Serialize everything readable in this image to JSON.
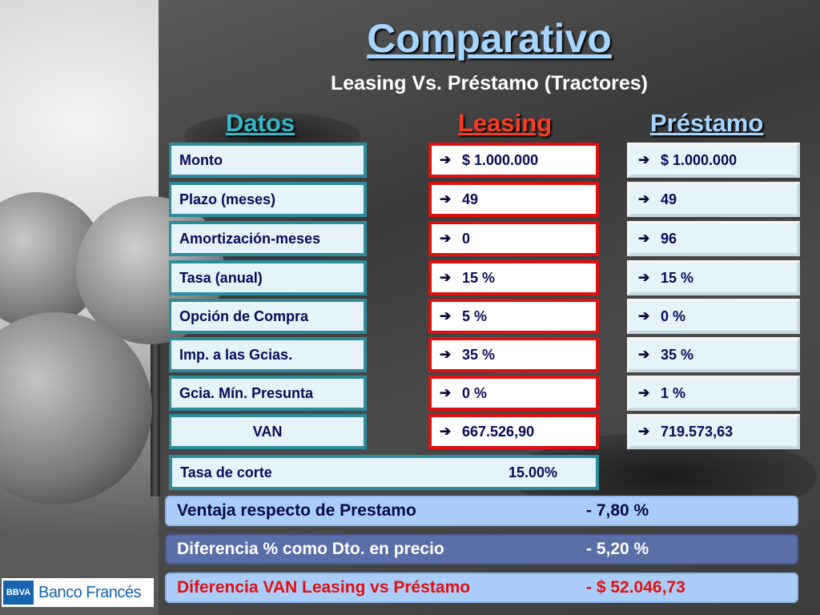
{
  "header": {
    "title": "Comparativo",
    "subtitle": "Leasing Vs. Préstamo (Tractores)"
  },
  "columns": {
    "datos": "Datos",
    "leasing": "Leasing",
    "prestamo": "Préstamo"
  },
  "arrow_icon": "➔",
  "rows": [
    {
      "label": "Monto",
      "leasing": "$ 1.000.000",
      "prestamo": "$ 1.000.000"
    },
    {
      "label": "Plazo (meses)",
      "leasing": "49",
      "prestamo": "49"
    },
    {
      "label": "Amortización-meses",
      "leasing": "0",
      "prestamo": "96"
    },
    {
      "label": "Tasa (anual)",
      "leasing": "15 %",
      "prestamo": "15 %"
    },
    {
      "label": "Opción de Compra",
      "leasing": "5 %",
      "prestamo": "0 %"
    },
    {
      "label": "Imp. a las Gcias.",
      "leasing": "35 %",
      "prestamo": "35 %"
    },
    {
      "label": "Gcia. Mín. Presunta",
      "leasing": "0 %",
      "prestamo": "1 %"
    },
    {
      "label": "VAN",
      "leasing": "667.526,90",
      "prestamo": "719.573,63"
    }
  ],
  "tasa_corte": {
    "label": "Tasa de corte",
    "value": "15.00%"
  },
  "summary": [
    {
      "label": "Ventaja respecto de Prestamo",
      "value": "- 7,80 %"
    },
    {
      "label": "Diferencia % como Dto. en precio",
      "value": "- 5,20 %"
    },
    {
      "label": "Diferencia VAN Leasing vs Préstamo",
      "value": "- $ 52.046,73"
    }
  ],
  "logo": {
    "mark": "BBVA",
    "name": "Banco Francés"
  },
  "colors": {
    "leasing_border": "#e01010",
    "datos_border": "#2e8b9a",
    "title": "#a6d6ff"
  }
}
